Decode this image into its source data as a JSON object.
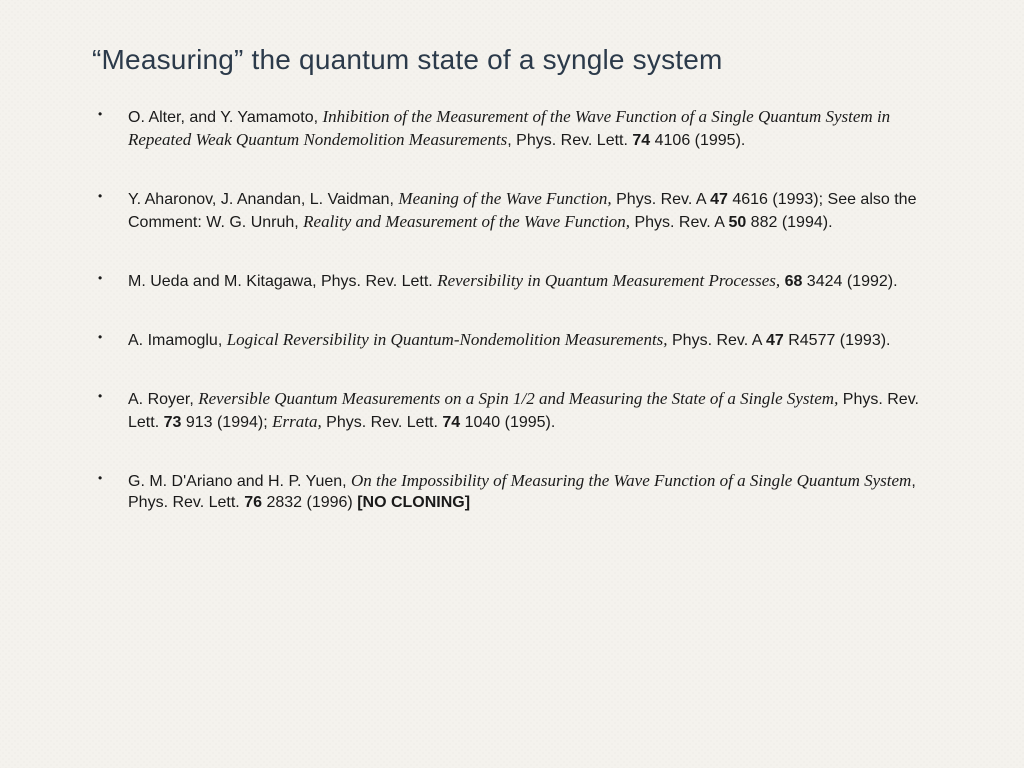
{
  "title": "“Measuring” the quantum state of a syngle system",
  "title_color": "#2b3a4a",
  "background_color": "#f4f2ed",
  "text_color": "#1a1a1a",
  "title_fontsize": 28,
  "body_fontsize": 16,
  "italic_font": "Times New Roman",
  "bullet_char": "•",
  "references": [
    {
      "parts": [
        {
          "text": "O. Alter, and Y. Yamamoto, "
        },
        {
          "text": "Inhibition of the Measurement of the Wave Function of a Single Quantum System in Repeated Weak Quantum Nondemolition Measurements",
          "italic": true
        },
        {
          "text": ", Phys. Rev. Lett. "
        },
        {
          "text": "74",
          "bold": true
        },
        {
          "text": " 4106 (1995)."
        }
      ]
    },
    {
      "parts": [
        {
          "text": "Y. Aharonov, J. Anandan, L. Vaidman, "
        },
        {
          "text": "Meaning of the Wave Function,",
          "italic": true
        },
        {
          "text": " Phys. Rev. A "
        },
        {
          "text": "47",
          "bold": true
        },
        {
          "text": " 4616 (1993); See also the Comment: W. G. Unruh, "
        },
        {
          "text": "Reality and Measurement of the Wave Function,",
          "italic": true
        },
        {
          "text": " Phys. Rev. A "
        },
        {
          "text": "50",
          "bold": true
        },
        {
          "text": " 882 (1994)."
        }
      ]
    },
    {
      "parts": [
        {
          "text": "M. Ueda and M. Kitagawa, Phys. Rev. Lett. "
        },
        {
          "text": "Reversibility in Quantum Measurement Processes,",
          "italic": true
        },
        {
          "text": " "
        },
        {
          "text": "68",
          "bold": true
        },
        {
          "text": " 3424 (1992)."
        }
      ]
    },
    {
      "parts": [
        {
          "text": "A. Imamoglu, "
        },
        {
          "text": "Logical Reversibility in Quantum-Nondemolition Measurements,",
          "italic": true
        },
        {
          "text": " Phys. Rev. A "
        },
        {
          "text": "47",
          "bold": true
        },
        {
          "text": " R4577 (1993)."
        }
      ]
    },
    {
      "parts": [
        {
          "text": "A. Royer, "
        },
        {
          "text": "Reversible Quantum Measurements on a Spin 1/2 and Measuring the State of a Single System,",
          "italic": true
        },
        {
          "text": " Phys. Rev. Lett. "
        },
        {
          "text": "73",
          "bold": true
        },
        {
          "text": " 913 (1994); "
        },
        {
          "text": "Errata,",
          "italic": true
        },
        {
          "text": " Phys. Rev. Lett. "
        },
        {
          "text": "74",
          "bold": true
        },
        {
          "text": " 1040 (1995)."
        }
      ]
    },
    {
      "parts": [
        {
          "text": "G. M. D'Ariano and H. P. Yuen, "
        },
        {
          "text": "On the Impossibility of Measuring the Wave Function of a Single Quantum System",
          "italic": true
        },
        {
          "text": ", Phys. Rev. Lett. "
        },
        {
          "text": "76",
          "bold": true
        },
        {
          "text": " 2832 (1996) "
        },
        {
          "text": "[NO CLONING]",
          "bold": true
        }
      ]
    }
  ]
}
